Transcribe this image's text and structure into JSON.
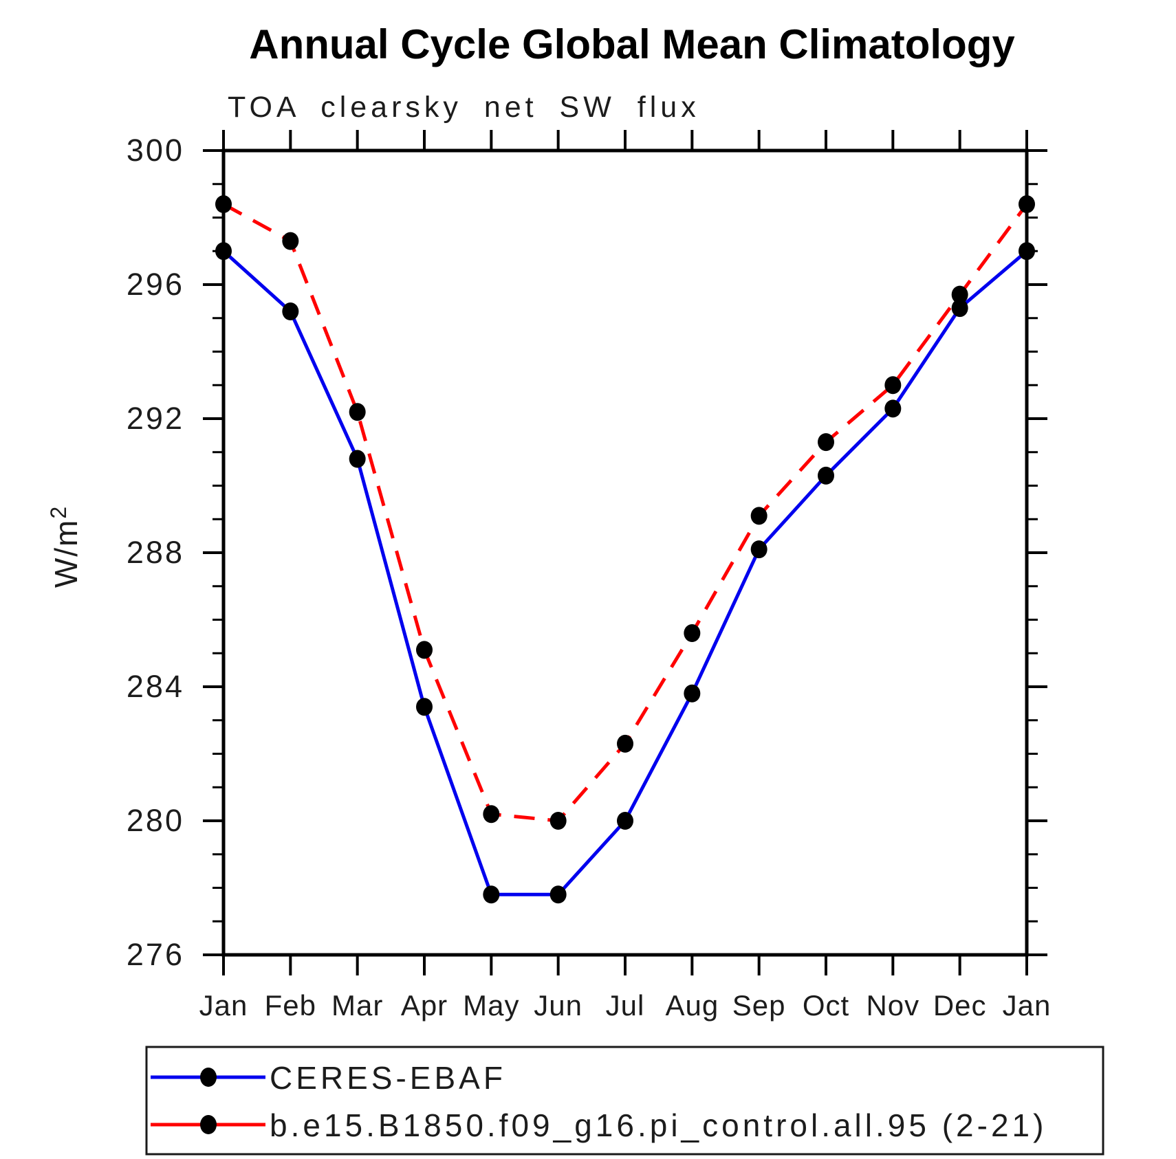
{
  "header": {
    "title": "Annual Cycle Global Mean Climatology",
    "subtitle": "TOA clearsky net SW flux"
  },
  "y_axis": {
    "label_main": "W/m",
    "label_sup": "2",
    "unit": "W/m²",
    "major_tick_labels": [
      "300",
      "296",
      "292",
      "288",
      "284",
      "280",
      "276"
    ],
    "major_tick_values": [
      300,
      296,
      292,
      288,
      284,
      280,
      276
    ],
    "minor_step": 1,
    "range_min": 276,
    "range_max": 300
  },
  "x_axis": {
    "month_labels": [
      "Jan",
      "Feb",
      "Mar",
      "Apr",
      "May",
      "Jun",
      "Jul",
      "Aug",
      "Sep",
      "Oct",
      "Nov",
      "Dec",
      "Jan"
    ]
  },
  "legend": {
    "marker_color": "#000000",
    "entries": [
      {
        "label": "CERES-EBAF",
        "color": "#0000ee",
        "dash_array": ""
      },
      {
        "label": "b.e15.B1850.f09_g16.pi_control.all.95 (2-21)",
        "color": "#ff0000",
        "dash_array": "30 19"
      }
    ]
  },
  "chart_data": {
    "type": "line",
    "title": "Annual Cycle Global Mean Climatology",
    "subtitle": "TOA clearsky net SW flux",
    "ylabel": "W/m²",
    "xlabel": "",
    "ylim": [
      276,
      300
    ],
    "ytick_major_interval": 4,
    "ytick_minor_interval": 1,
    "grid": false,
    "legend_position": "bottom",
    "marker": "filled-circle",
    "marker_color": "#000000",
    "categories": [
      "Jan",
      "Feb",
      "Mar",
      "Apr",
      "May",
      "Jun",
      "Jul",
      "Aug",
      "Sep",
      "Oct",
      "Nov",
      "Dec",
      "Jan"
    ],
    "series": [
      {
        "name": "CERES-EBAF",
        "color": "#0000ee",
        "line_style": "solid",
        "dash_array": "",
        "values": [
          297.0,
          295.2,
          290.8,
          283.4,
          277.8,
          277.8,
          280.0,
          283.8,
          288.1,
          290.3,
          292.3,
          295.3,
          297.0
        ]
      },
      {
        "name": "b.e15.B1850.f09_g16.pi_control.all.95 (2-21)",
        "color": "#ff0000",
        "line_style": "dashed",
        "dash_array": "30 19",
        "values": [
          298.4,
          297.3,
          292.2,
          285.1,
          280.2,
          280.0,
          282.3,
          285.6,
          289.1,
          291.3,
          293.0,
          295.7,
          298.4
        ]
      }
    ]
  }
}
